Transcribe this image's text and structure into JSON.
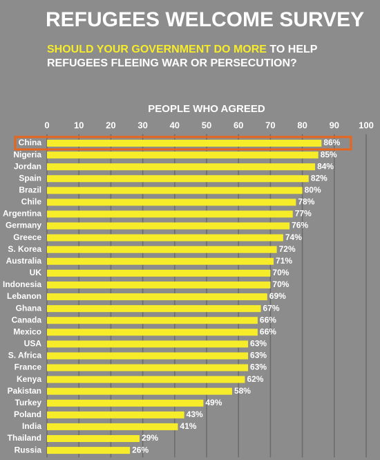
{
  "chart_data": {
    "type": "bar",
    "orientation": "horizontal",
    "title": "REFUGEES WELCOME SURVEY",
    "subtitle_highlight": "SHOULD YOUR GOVERNMENT DO MORE",
    "subtitle": "TO HELP REFUGEES FLEEING WAR OR PERSECUTION?",
    "x_label": "PEOPLE WHO AGREED",
    "categories": [
      "China",
      "Nigeria",
      "Jordan",
      "Spain",
      "Brazil",
      "Chile",
      "Argentina",
      "Germany",
      "Greece",
      "S. Korea",
      "Australia",
      "UK",
      "Indonesia",
      "Lebanon",
      "Ghana",
      "Canada",
      "Mexico",
      "USA",
      "S. Africa",
      "France",
      "Kenya",
      "Pakistan",
      "Turkey",
      "Poland",
      "India",
      "Thailand",
      "Russia"
    ],
    "values": [
      86,
      85,
      84,
      82,
      80,
      78,
      77,
      76,
      74,
      72,
      71,
      70,
      70,
      69,
      67,
      66,
      66,
      63,
      63,
      63,
      62,
      58,
      49,
      43,
      41,
      29,
      26
    ],
    "value_labels": [
      "86%",
      "85%",
      "84%",
      "82%",
      "80%",
      "78%",
      "77%",
      "76%",
      "74%",
      "72%",
      "71%",
      "70%",
      "70%",
      "69%",
      "67%",
      "66%",
      "66%",
      "63%",
      "63%",
      "63%",
      "62%",
      "58%",
      "49%",
      "43%",
      "41%",
      "29%",
      "26%"
    ],
    "color": "#f7ec2a",
    "xlim": [
      0,
      100
    ],
    "xticks": [
      0,
      10,
      20,
      30,
      40,
      50,
      60,
      70,
      80,
      90,
      100
    ],
    "grid": true
  }
}
